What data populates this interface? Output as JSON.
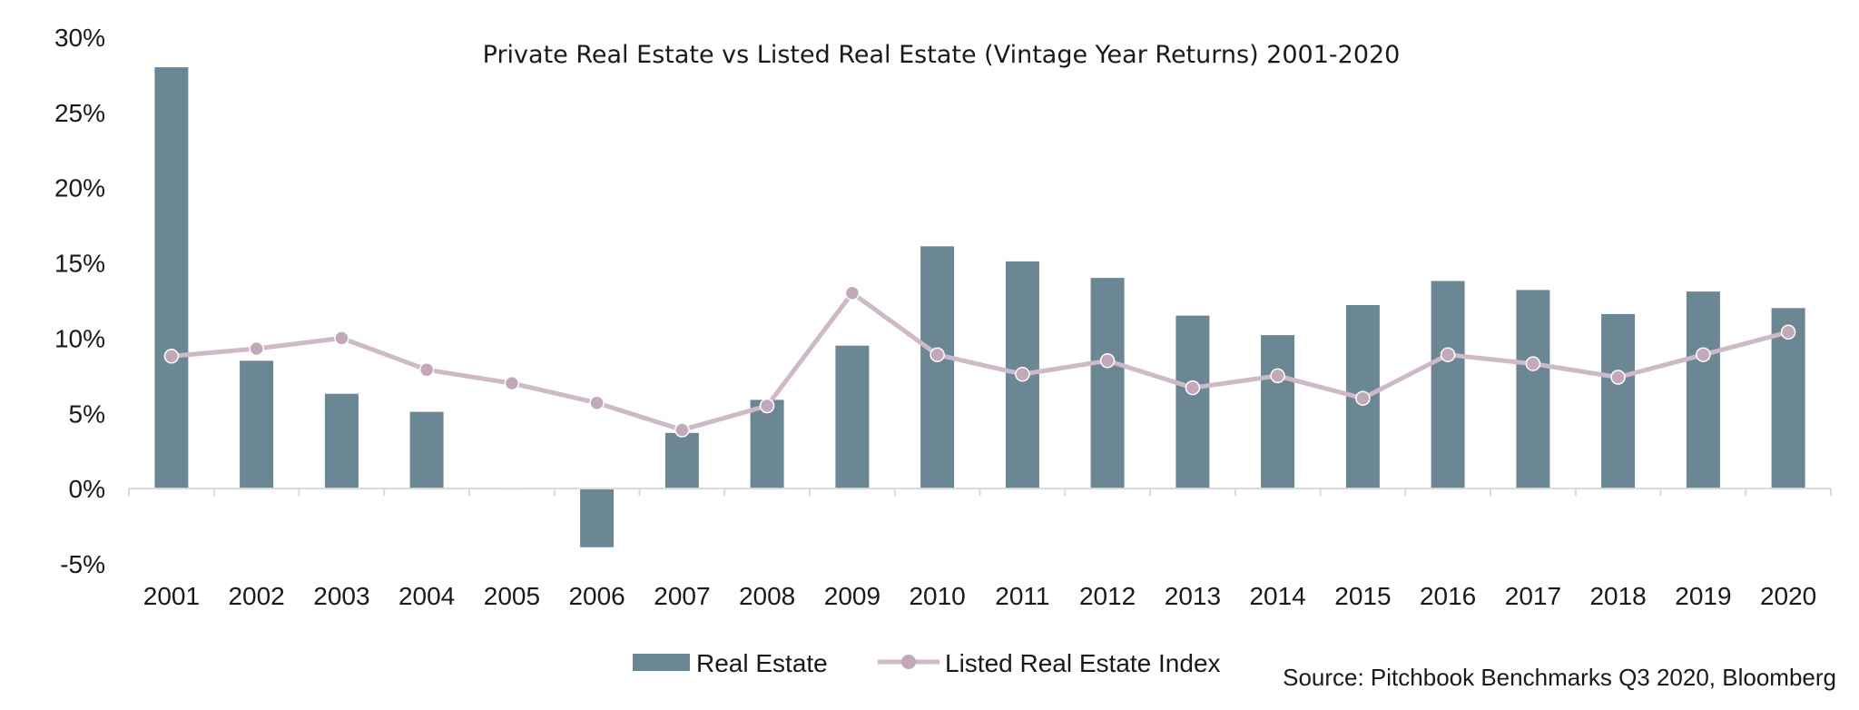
{
  "chart_data": {
    "type": "bar",
    "title": "Private Real Estate vs Listed Real Estate  (Vintage Year Returns) 2001-2020",
    "xlabel": "",
    "ylabel": "",
    "ylim": [
      -5,
      30
    ],
    "y_ticks": [
      30,
      25,
      20,
      15,
      10,
      5,
      0,
      -5
    ],
    "y_tick_labels": [
      "30%",
      "25%",
      "20%",
      "15%",
      "10%",
      "5%",
      "0%",
      "-5%"
    ],
    "categories": [
      "2001",
      "2002",
      "2003",
      "2004",
      "2005",
      "2006",
      "2007",
      "2008",
      "2009",
      "2010",
      "2011",
      "2012",
      "2013",
      "2014",
      "2015",
      "2016",
      "2017",
      "2018",
      "2019",
      "2020"
    ],
    "series": [
      {
        "name": "Real Estate",
        "type": "bar",
        "color": "#6b8793",
        "values": [
          28.0,
          8.5,
          6.3,
          5.1,
          0.0,
          -3.9,
          3.7,
          5.9,
          9.5,
          16.1,
          15.1,
          14.0,
          11.5,
          10.2,
          12.2,
          13.8,
          13.2,
          11.6,
          13.1,
          12.0
        ]
      },
      {
        "name": "Listed Real Estate Index",
        "type": "line",
        "color": "#cfb8c7",
        "marker_color": "#c3a8ba",
        "values": [
          8.8,
          9.3,
          10.0,
          7.9,
          7.0,
          5.7,
          3.9,
          5.5,
          13.0,
          8.9,
          7.6,
          8.5,
          6.7,
          7.5,
          6.0,
          8.9,
          8.3,
          7.4,
          8.9,
          10.4
        ]
      }
    ],
    "grid": false,
    "legend": "bottom",
    "source": "Source: Pitchbook Benchmarks Q3 2020, Bloomberg"
  }
}
